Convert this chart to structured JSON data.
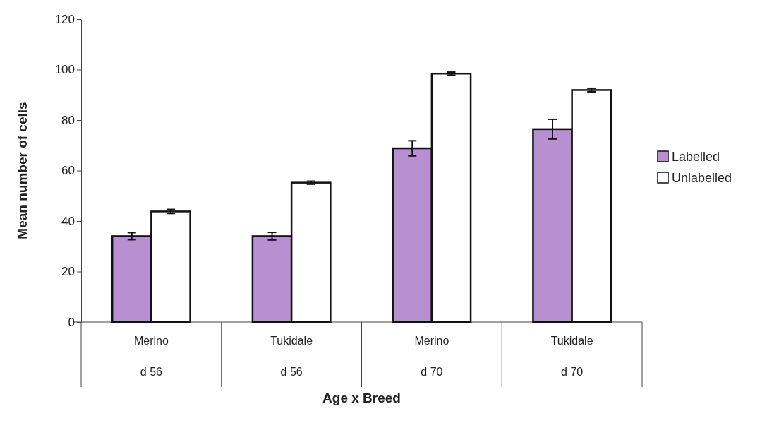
{
  "chart_data": {
    "type": "bar",
    "xlabel": "Age x Breed",
    "ylabel": "Mean number of cells",
    "categories": [
      "Merino\nd 56",
      "Tukidale\nd 56",
      "Merino\nd 70",
      "Tukidale\nd 70"
    ],
    "series": [
      {
        "name": "Labelled",
        "color": "#b88fd0",
        "values": [
          34,
          34,
          68.8,
          76.4
        ],
        "errors": [
          1.4,
          1.5,
          3,
          3.9
        ]
      },
      {
        "name": "Unlabelled",
        "color": "#ffffff",
        "values": [
          43.8,
          55.2,
          98.4,
          91.9
        ],
        "errors": [
          0.8,
          0.6,
          0.6,
          0.7
        ]
      }
    ],
    "ylim": [
      0,
      120
    ],
    "yticks": [
      0,
      20,
      40,
      60,
      80,
      100,
      120
    ],
    "grid": false,
    "legend": "right"
  }
}
